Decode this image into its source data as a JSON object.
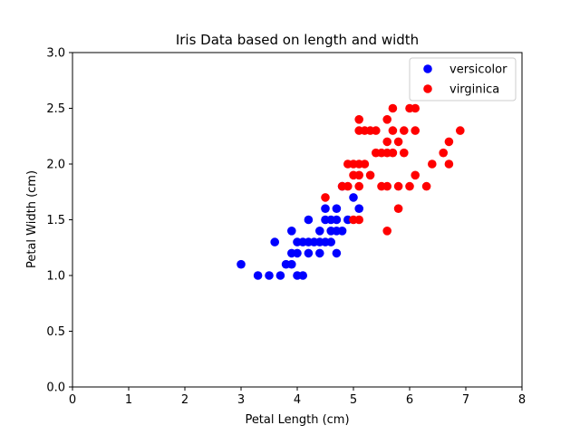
{
  "chart_data": {
    "type": "scatter",
    "title": "Iris Data based on length and width",
    "xlabel": "Petal Length (cm)",
    "ylabel": "Petal Width (cm)",
    "xlim": [
      0,
      8
    ],
    "ylim": [
      0,
      3.0
    ],
    "xticks": [
      "0",
      "1",
      "2",
      "3",
      "4",
      "5",
      "6",
      "7",
      "8"
    ],
    "yticks": [
      "0.0",
      "0.5",
      "1.0",
      "1.5",
      "2.0",
      "2.5",
      "3.0"
    ],
    "grid": false,
    "legend_position": "top-right",
    "series": [
      {
        "name": "versicolor",
        "color": "#0000ff",
        "points": [
          [
            3.0,
            1.1
          ],
          [
            3.3,
            1.0
          ],
          [
            3.5,
            1.0
          ],
          [
            3.6,
            1.3
          ],
          [
            3.7,
            1.0
          ],
          [
            3.8,
            1.1
          ],
          [
            3.9,
            1.1
          ],
          [
            3.9,
            1.2
          ],
          [
            3.9,
            1.4
          ],
          [
            4.0,
            1.0
          ],
          [
            4.0,
            1.2
          ],
          [
            4.0,
            1.3
          ],
          [
            4.1,
            1.0
          ],
          [
            4.1,
            1.3
          ],
          [
            4.2,
            1.2
          ],
          [
            4.2,
            1.3
          ],
          [
            4.2,
            1.5
          ],
          [
            4.3,
            1.3
          ],
          [
            4.4,
            1.2
          ],
          [
            4.4,
            1.3
          ],
          [
            4.4,
            1.4
          ],
          [
            4.5,
            1.3
          ],
          [
            4.5,
            1.5
          ],
          [
            4.5,
            1.6
          ],
          [
            4.6,
            1.3
          ],
          [
            4.6,
            1.4
          ],
          [
            4.6,
            1.5
          ],
          [
            4.7,
            1.2
          ],
          [
            4.7,
            1.4
          ],
          [
            4.7,
            1.5
          ],
          [
            4.7,
            1.6
          ],
          [
            4.8,
            1.4
          ],
          [
            4.8,
            1.8
          ],
          [
            4.9,
            1.5
          ],
          [
            5.0,
            1.7
          ],
          [
            5.1,
            1.6
          ]
        ]
      },
      {
        "name": "virginica",
        "color": "#ff0000",
        "points": [
          [
            4.5,
            1.7
          ],
          [
            4.8,
            1.8
          ],
          [
            4.9,
            1.8
          ],
          [
            4.9,
            2.0
          ],
          [
            5.0,
            1.5
          ],
          [
            5.0,
            1.9
          ],
          [
            5.0,
            2.0
          ],
          [
            5.1,
            1.5
          ],
          [
            5.1,
            1.8
          ],
          [
            5.1,
            1.9
          ],
          [
            5.1,
            2.0
          ],
          [
            5.1,
            2.3
          ],
          [
            5.1,
            2.4
          ],
          [
            5.2,
            2.0
          ],
          [
            5.2,
            2.3
          ],
          [
            5.3,
            1.9
          ],
          [
            5.3,
            2.3
          ],
          [
            5.4,
            2.1
          ],
          [
            5.4,
            2.3
          ],
          [
            5.5,
            1.8
          ],
          [
            5.5,
            2.1
          ],
          [
            5.6,
            1.4
          ],
          [
            5.6,
            1.8
          ],
          [
            5.6,
            2.1
          ],
          [
            5.6,
            2.2
          ],
          [
            5.6,
            2.4
          ],
          [
            5.7,
            2.1
          ],
          [
            5.7,
            2.3
          ],
          [
            5.7,
            2.5
          ],
          [
            5.8,
            1.6
          ],
          [
            5.8,
            1.8
          ],
          [
            5.8,
            2.2
          ],
          [
            5.9,
            2.1
          ],
          [
            5.9,
            2.3
          ],
          [
            6.0,
            1.8
          ],
          [
            6.0,
            2.5
          ],
          [
            6.1,
            1.9
          ],
          [
            6.1,
            2.3
          ],
          [
            6.1,
            2.5
          ],
          [
            6.3,
            1.8
          ],
          [
            6.4,
            2.0
          ],
          [
            6.6,
            2.1
          ],
          [
            6.7,
            2.0
          ],
          [
            6.7,
            2.2
          ],
          [
            6.9,
            2.3
          ]
        ]
      }
    ]
  }
}
